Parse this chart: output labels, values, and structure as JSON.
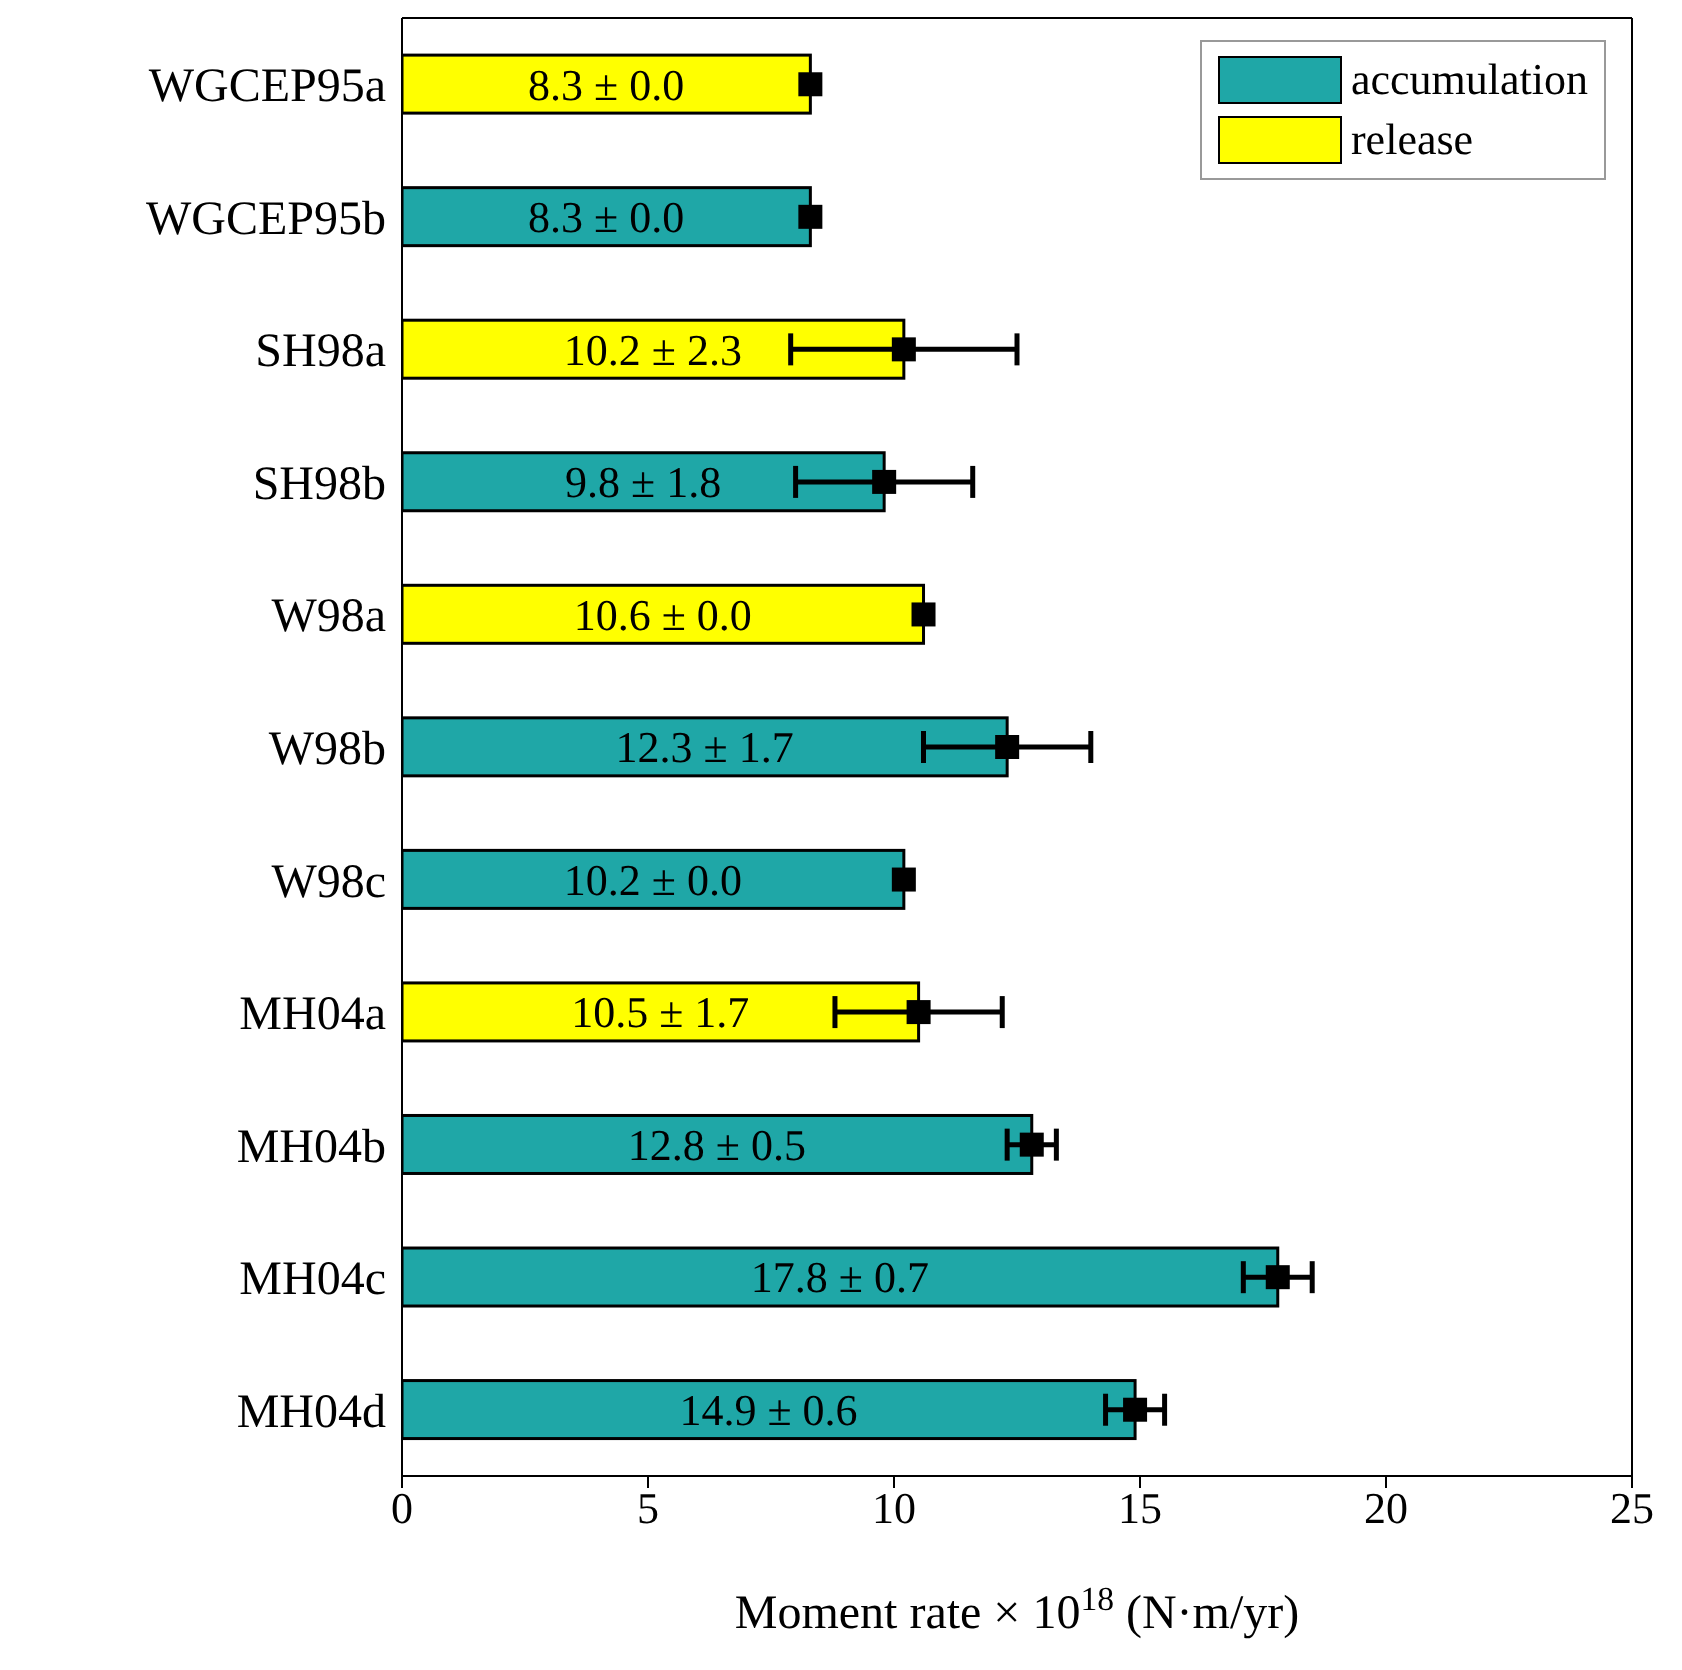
{
  "chart_data": {
    "type": "bar",
    "orientation": "horizontal",
    "stacked": true,
    "categories": [
      "WGCEP95a",
      "WGCEP95b",
      "SH98a",
      "SH98b",
      "W98a",
      "W98b",
      "W98c",
      "MH04a",
      "MH04b",
      "MH04c",
      "MH04d"
    ],
    "series": [
      {
        "name": "accumulation",
        "color": "#1fa7a7",
        "values": [
          null,
          8.3,
          null,
          9.8,
          null,
          12.3,
          10.2,
          null,
          12.8,
          17.8,
          14.9
        ],
        "value_labels": [
          null,
          "8.3 ± 0.0",
          null,
          "9.8 ± 1.8",
          null,
          "12.3 ± 1.7",
          "10.2 ± 0.0",
          null,
          "12.8 ± 0.5",
          "17.8 ± 0.7",
          "14.9 ± 0.6"
        ]
      },
      {
        "name": "release",
        "color": "#ffff00",
        "values": [
          8.3,
          null,
          10.2,
          null,
          10.6,
          null,
          null,
          10.5,
          null,
          null,
          null
        ],
        "value_labels": [
          "8.3 ± 0.0",
          null,
          "10.2 ± 2.3",
          null,
          "10.6 ± 0.0",
          null,
          null,
          "10.5 ± 1.7",
          null,
          null,
          null
        ]
      },
      {
        "type": "scatter",
        "color": "#000000",
        "marker": "square",
        "x": [
          "WGCEP95a",
          "WGCEP95b",
          "SH98a",
          "SH98b",
          "W98a",
          "W98b",
          "W98c",
          "MH04a",
          "MH04b",
          "MH04c",
          "MH04d"
        ],
        "values": [
          8.3,
          8.3,
          10.2,
          9.8,
          10.6,
          12.3,
          10.2,
          10.5,
          12.8,
          17.8,
          14.9
        ],
        "errors": [
          0,
          0,
          2.3,
          1.8,
          0,
          1.7,
          0,
          1.7,
          0.5,
          0.7,
          0.6
        ]
      }
    ],
    "xlabel": "Moment rate × 10$^{18}$ (N·m/yr)",
    "xlim": [
      0,
      25
    ],
    "xticks": [
      0,
      5,
      10,
      15,
      20,
      25
    ],
    "legend": "top right"
  }
}
